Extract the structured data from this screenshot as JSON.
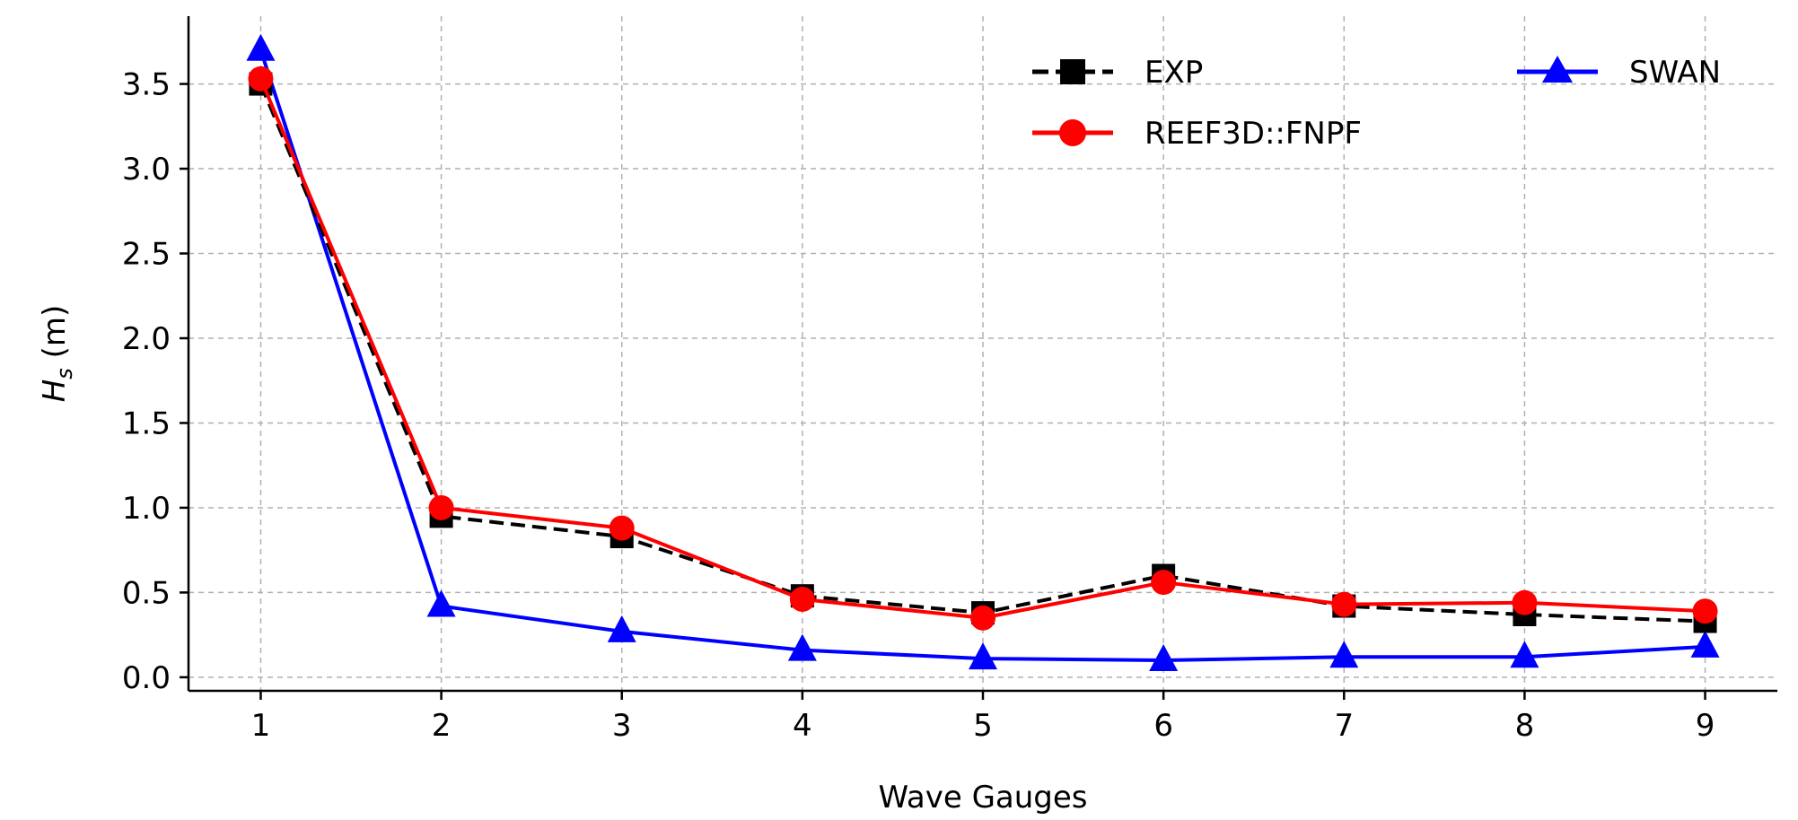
{
  "chart_data": {
    "type": "line",
    "xlabel": "Wave Gauges",
    "ylabel_main": "H",
    "ylabel_sub": "s",
    "ylabel_unit": " (m)",
    "x": [
      1,
      2,
      3,
      4,
      5,
      6,
      7,
      8,
      9
    ],
    "x_ticks": [
      "1",
      "2",
      "3",
      "4",
      "5",
      "6",
      "7",
      "8",
      "9"
    ],
    "xlim": [
      0.6,
      9.4
    ],
    "ylim": [
      -0.08,
      3.9
    ],
    "y_ticks": [
      "0.0",
      "0.5",
      "1.0",
      "1.5",
      "2.0",
      "2.5",
      "3.0",
      "3.5"
    ],
    "grid": true,
    "legend_position": "top-right",
    "series": [
      {
        "name": "EXP",
        "color": "#000000",
        "marker": "square",
        "dashed": true,
        "values": [
          3.5,
          0.95,
          0.83,
          0.48,
          0.38,
          0.6,
          0.42,
          0.37,
          0.33
        ]
      },
      {
        "name": "REEF3D::FNPF",
        "color": "#ff0000",
        "marker": "circle",
        "dashed": false,
        "values": [
          3.53,
          1.0,
          0.88,
          0.46,
          0.35,
          0.56,
          0.43,
          0.44,
          0.39
        ]
      },
      {
        "name": "SWAN",
        "color": "#0000ff",
        "marker": "triangle",
        "dashed": false,
        "values": [
          3.7,
          0.42,
          0.27,
          0.16,
          0.11,
          0.1,
          0.12,
          0.12,
          0.18
        ]
      }
    ]
  }
}
